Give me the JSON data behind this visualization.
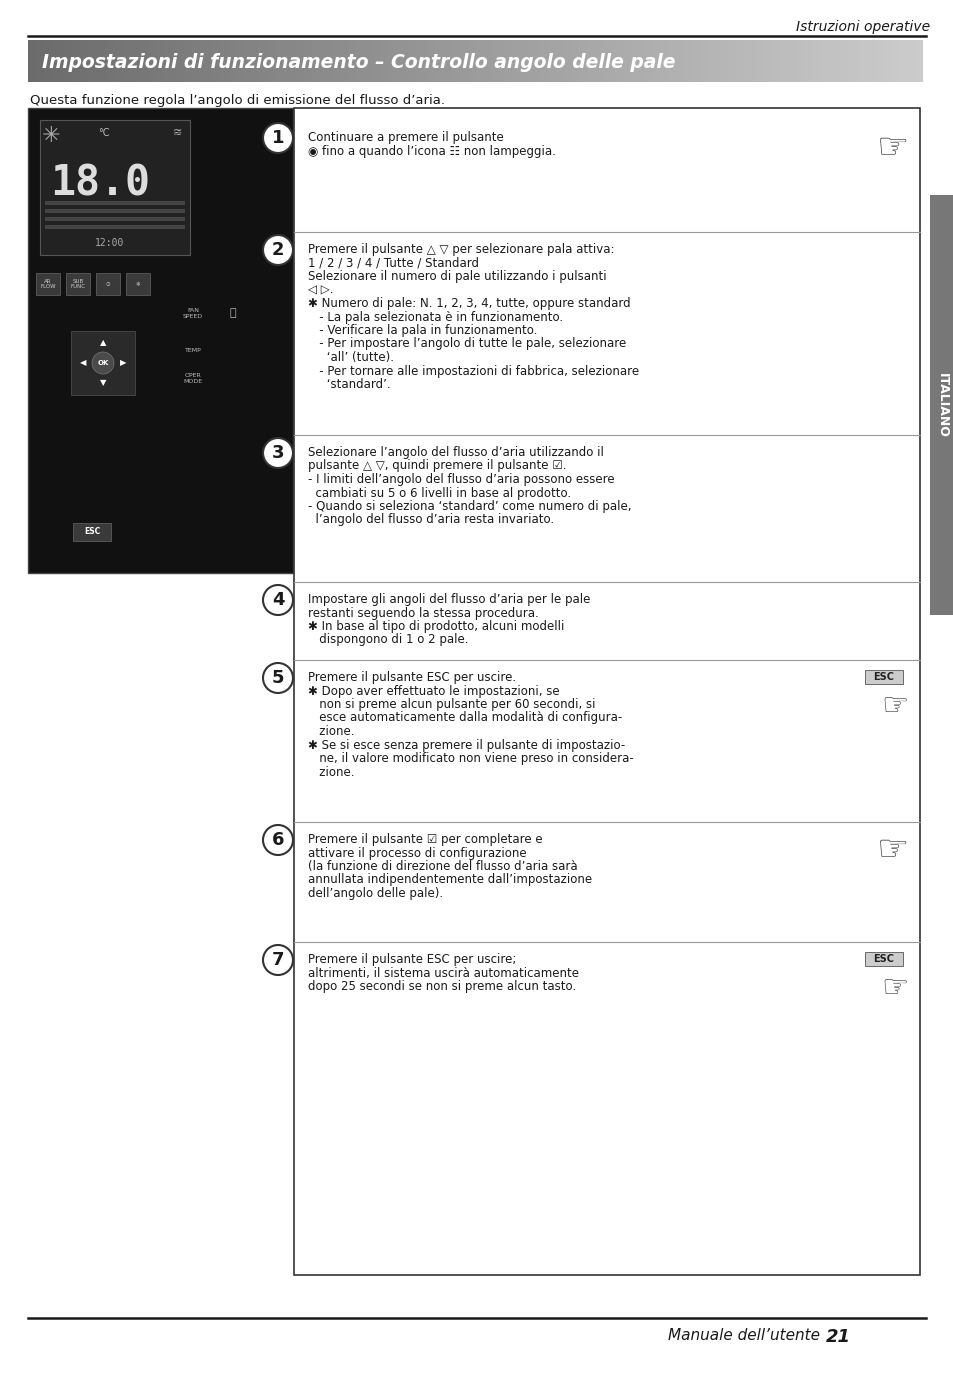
{
  "page_header_right": "Istruzioni operative",
  "section_title": "Impostazioni di funzionamento – Controllo angolo delle pale",
  "intro_text": "Questa funzione regola l’angolo di emissione del flusso d’aria.",
  "page_footer": "Manuale dell’utente",
  "page_number": "21",
  "sidebar_text": "ITALIANO",
  "steps": [
    {
      "number": "1",
      "lines": [
        "Continuare a premere il pulsante",
        "◉ fino a quando l’icona ☷ non lampeggia."
      ]
    },
    {
      "number": "2",
      "lines": [
        "Premere il pulsante △ ▽ per selezionare pala attiva:",
        "1 / 2 / 3 / 4 / Tutte / Standard",
        "Selezionare il numero di pale utilizzando i pulsanti",
        "◁ ▷.",
        "✱ Numero di pale: N. 1, 2, 3, 4, tutte, oppure standard",
        "   - La pala selezionata è in funzionamento.",
        "   - Verificare la pala in funzionamento.",
        "   - Per impostare l’angolo di tutte le pale, selezionare",
        "     ‘all’ (tutte).",
        "   - Per tornare alle impostazioni di fabbrica, selezionare",
        "     ‘standard’."
      ]
    },
    {
      "number": "3",
      "lines": [
        "Selezionare l’angolo del flusso d’aria utilizzando il",
        "pulsante △ ▽, quindi premere il pulsante ☑.",
        "- I limiti dell’angolo del flusso d’aria possono essere",
        "  cambiati su 5 o 6 livelli in base al prodotto.",
        "- Quando si seleziona ‘standard’ come numero di pale,",
        "  l’angolo del flusso d’aria resta invariato."
      ]
    },
    {
      "number": "4",
      "lines": [
        "Impostare gli angoli del flusso d’aria per le pale",
        "restanti seguendo la stessa procedura.",
        "✱ In base al tipo di prodotto, alcuni modelli",
        "   dispongono di 1 o 2 pale."
      ]
    },
    {
      "number": "5",
      "lines": [
        "Premere il pulsante ESC per uscire.",
        "✱ Dopo aver effettuato le impostazioni, se",
        "   non si preme alcun pulsante per 60 secondi, si",
        "   esce automaticamente dalla modalità di configura-",
        "   zione.",
        "✱ Se si esce senza premere il pulsante di impostazio-",
        "   ne, il valore modificato non viene preso in considera-",
        "   zione."
      ]
    },
    {
      "number": "6",
      "lines": [
        "Premere il pulsante ☑ per completare e",
        "attivare il processo di configurazione",
        "(la funzione di direzione del flusso d’aria sarà",
        "annullata indipendentemente dall’impostazione",
        "dell’angolo delle pale)."
      ]
    },
    {
      "number": "7",
      "lines": [
        "Premere il pulsante ESC per uscire;",
        "altrimenti, il sistema uscirà automaticamente",
        "dopo 25 secondi se non si preme alcun tasto."
      ]
    }
  ],
  "step_tops": [
    120,
    232,
    435,
    582,
    660,
    822,
    942,
    1062
  ],
  "step_bottoms": [
    232,
    435,
    582,
    660,
    822,
    942,
    1062,
    1275
  ],
  "bg_color": "#ffffff",
  "header_line_color": "#1a1a1a",
  "footer_line_color": "#1a1a1a",
  "section_title_color": "#ffffff",
  "text_color": "#1a1a1a",
  "sidebar_bg": "#777777",
  "sidebar_text_color": "#ffffff",
  "box_border_color": "#333333",
  "device_image_bg": "#1a1a1a"
}
